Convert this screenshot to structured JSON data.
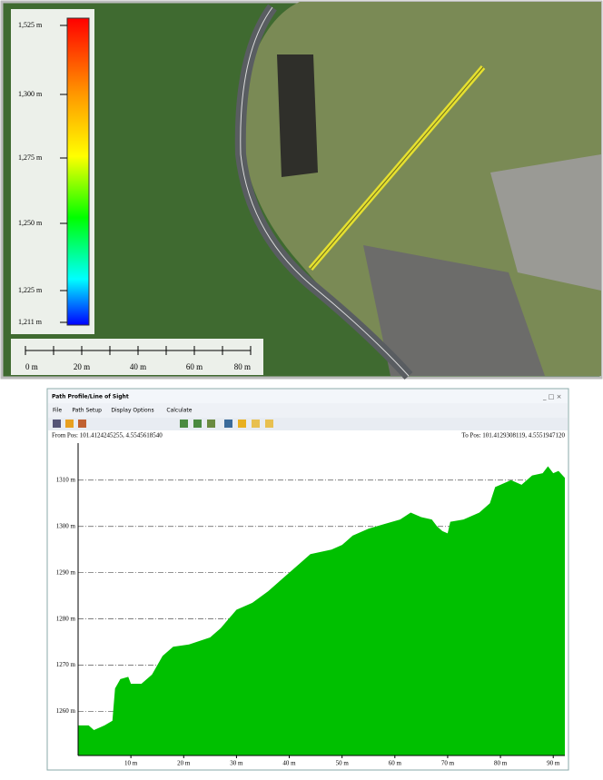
{
  "map": {
    "legend_labels": [
      "1,525 m",
      "1,300 m",
      "1,275 m",
      "1,250 m",
      "1,225 m",
      "1,211 m"
    ],
    "scale_labels": [
      "0 m",
      "20 m",
      "40 m",
      "60 m",
      "80 m"
    ]
  },
  "window": {
    "title": "Path Profile/Line of Sight",
    "menu": [
      "File",
      "Path Setup",
      "Display Options",
      "Calculate"
    ],
    "from_pos": "From Pos: 101.4124245255, 4.5545618540",
    "to_pos": "To Pos: 101.4129308119, 4.5551947120"
  },
  "chart_data": {
    "type": "area",
    "series": [
      {
        "color": "#00c000",
        "x": [
          0,
          2,
          3,
          5,
          6.5,
          7,
          8,
          9.5,
          10,
          12,
          14,
          16,
          18,
          21,
          25,
          27,
          30,
          33,
          36,
          39,
          42,
          44,
          48,
          50,
          52,
          55,
          58,
          61,
          63,
          65,
          67,
          68,
          69,
          70,
          70.5,
          73,
          76,
          78,
          79,
          80,
          82,
          84,
          86,
          88,
          89,
          90,
          91,
          92.2
        ],
        "values": [
          1257,
          1257,
          1256,
          1257,
          1258,
          1265,
          1267,
          1267.5,
          1266,
          1266,
          1268,
          1272,
          1274,
          1274.5,
          1276,
          1278,
          1282,
          1283.5,
          1286,
          1289,
          1292,
          1294,
          1295,
          1296,
          1298,
          1299.5,
          1300.5,
          1301.5,
          1303,
          1302,
          1301.5,
          1300,
          1299,
          1298.5,
          1301,
          1301.5,
          1303,
          1305,
          1308.5,
          1309,
          1310,
          1309,
          1311,
          1311.5,
          1313,
          1311.5,
          1312,
          1310.5
        ]
      }
    ],
    "xlim": [
      0,
      92.2
    ],
    "ylim": [
      1250.5,
      1318
    ],
    "xticks": [
      {
        "value": 10,
        "label": "10 m"
      },
      {
        "value": 20,
        "label": "20 m"
      },
      {
        "value": 30,
        "label": "30 m"
      },
      {
        "value": 40,
        "label": "40 m"
      },
      {
        "value": 50,
        "label": "50 m"
      },
      {
        "value": 60,
        "label": "60 m"
      },
      {
        "value": 70,
        "label": "70 m"
      },
      {
        "value": 80,
        "label": "80 m"
      },
      {
        "value": 90,
        "label": "90 m"
      }
    ],
    "yticks": [
      {
        "value": 1260,
        "label": "1260 m"
      },
      {
        "value": 1270,
        "label": "1270 m"
      },
      {
        "value": 1280,
        "label": "1280 m"
      },
      {
        "value": 1290,
        "label": "1290 m"
      },
      {
        "value": 1300,
        "label": "1300 m"
      },
      {
        "value": 1310,
        "label": "1310 m"
      }
    ],
    "grid": true
  }
}
